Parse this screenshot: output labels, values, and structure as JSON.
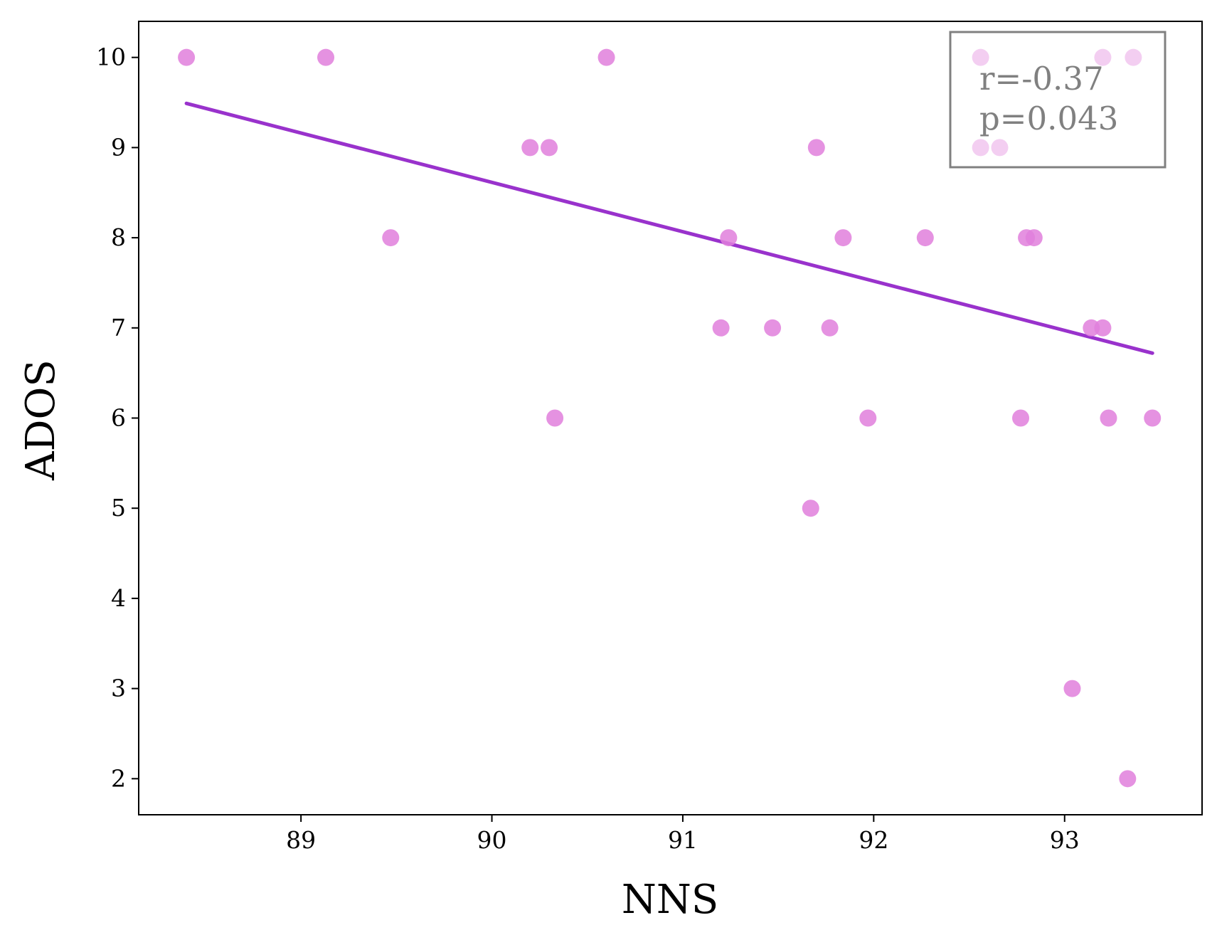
{
  "chart_data": {
    "type": "scatter",
    "title": "",
    "xlabel": "NNS",
    "ylabel": "ADOS",
    "xlim": [
      88.15,
      93.72
    ],
    "ylim": [
      1.6,
      10.4
    ],
    "x_ticks": [
      89,
      90,
      91,
      92,
      93
    ],
    "y_ticks": [
      2,
      3,
      4,
      5,
      6,
      7,
      8,
      9,
      10
    ],
    "grid": false,
    "legend": "none",
    "colors": {
      "points": "#e07fdc",
      "fit_line": "#9932cc",
      "annotation": "#808080"
    },
    "series": [
      {
        "points": [
          {
            "x": 88.4,
            "y": 10
          },
          {
            "x": 89.13,
            "y": 10
          },
          {
            "x": 90.6,
            "y": 10
          },
          {
            "x": 92.56,
            "y": 10
          },
          {
            "x": 93.2,
            "y": 10
          },
          {
            "x": 93.36,
            "y": 10
          },
          {
            "x": 90.2,
            "y": 9
          },
          {
            "x": 90.3,
            "y": 9
          },
          {
            "x": 91.7,
            "y": 9
          },
          {
            "x": 92.56,
            "y": 9
          },
          {
            "x": 92.66,
            "y": 9
          },
          {
            "x": 89.47,
            "y": 8
          },
          {
            "x": 91.24,
            "y": 8
          },
          {
            "x": 91.84,
            "y": 8
          },
          {
            "x": 92.27,
            "y": 8
          },
          {
            "x": 92.8,
            "y": 8
          },
          {
            "x": 92.84,
            "y": 8
          },
          {
            "x": 91.2,
            "y": 7
          },
          {
            "x": 91.47,
            "y": 7
          },
          {
            "x": 91.77,
            "y": 7
          },
          {
            "x": 93.14,
            "y": 7
          },
          {
            "x": 93.2,
            "y": 7
          },
          {
            "x": 90.33,
            "y": 6
          },
          {
            "x": 91.97,
            "y": 6
          },
          {
            "x": 92.77,
            "y": 6
          },
          {
            "x": 93.23,
            "y": 6
          },
          {
            "x": 93.46,
            "y": 6
          },
          {
            "x": 91.67,
            "y": 5
          },
          {
            "x": 93.04,
            "y": 3
          },
          {
            "x": 93.33,
            "y": 2
          }
        ]
      }
    ],
    "fit_line": {
      "x": [
        88.4,
        93.46
      ],
      "y": [
        9.49,
        6.72
      ]
    },
    "annotation": {
      "lines": [
        "r=-0.37",
        "p=0.043"
      ],
      "placement": "top-right"
    }
  }
}
